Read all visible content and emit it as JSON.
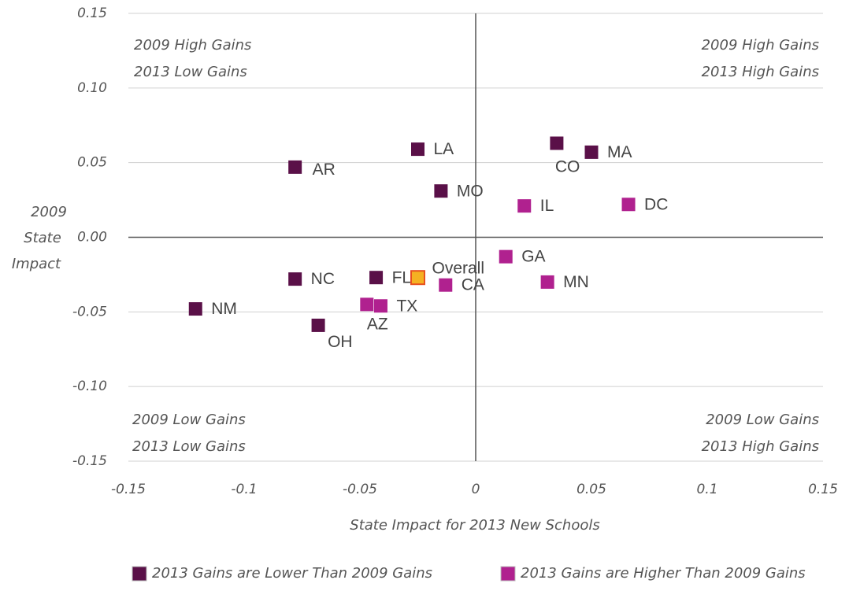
{
  "chart_data": {
    "type": "scatter",
    "xlabel": "State Impact for 2013 New Schools",
    "ylabel": [
      "2009",
      "State",
      "Impact"
    ],
    "xlim": [
      -0.15,
      0.15
    ],
    "ylim": [
      -0.15,
      0.15
    ],
    "xticks": [
      -0.15,
      -0.1,
      -0.05,
      0,
      0.05,
      0.1,
      0.15
    ],
    "yticks": [
      -0.15,
      {
        "value": -0.1,
        "label": "-0.10"
      },
      -0.05,
      {
        "value": 0,
        "label": "0.00"
      },
      0.05,
      {
        "value": 0.1,
        "label": "0.10"
      },
      0.15
    ],
    "grid": true,
    "legend": "bottom",
    "annotations": [
      [
        "2009 High Gains",
        "2013 Low Gains"
      ],
      [
        "2009 High Gains",
        "2013 High Gains"
      ],
      [
        "2009 Low Gains",
        "2013 Low Gains"
      ],
      [
        "2009 Low Gains",
        "2013 High Gains"
      ]
    ],
    "series": [
      {
        "name": "2013 Gains are Lower Than 2009 Gains",
        "color": "#5a1048",
        "labels": [
          "AR",
          "LA",
          "MO",
          "CO",
          "MA",
          "NC",
          "FL",
          "NM",
          "OH"
        ],
        "x": [
          -0.078,
          -0.025,
          -0.015,
          0.035,
          0.05,
          -0.078,
          -0.043,
          -0.121,
          -0.068
        ],
        "values": [
          0.047,
          0.059,
          0.031,
          0.063,
          0.057,
          -0.028,
          -0.027,
          -0.048,
          -0.059
        ]
      },
      {
        "name": "2013 Gains are Higher Than 2009 Gains",
        "color": "#b0218f",
        "labels": [
          "IL",
          "DC",
          "GA",
          "CA",
          "MN",
          "AZ",
          "TX"
        ],
        "x": [
          0.021,
          0.066,
          0.013,
          -0.013,
          0.031,
          -0.047,
          -0.041
        ],
        "values": [
          0.021,
          0.022,
          -0.013,
          -0.032,
          -0.03,
          -0.045,
          -0.046
        ]
      }
    ],
    "highlight": {
      "label": "Overall",
      "x": -0.025,
      "y": -0.027,
      "color": "#f5b122",
      "stroke": "#e8501e"
    }
  }
}
